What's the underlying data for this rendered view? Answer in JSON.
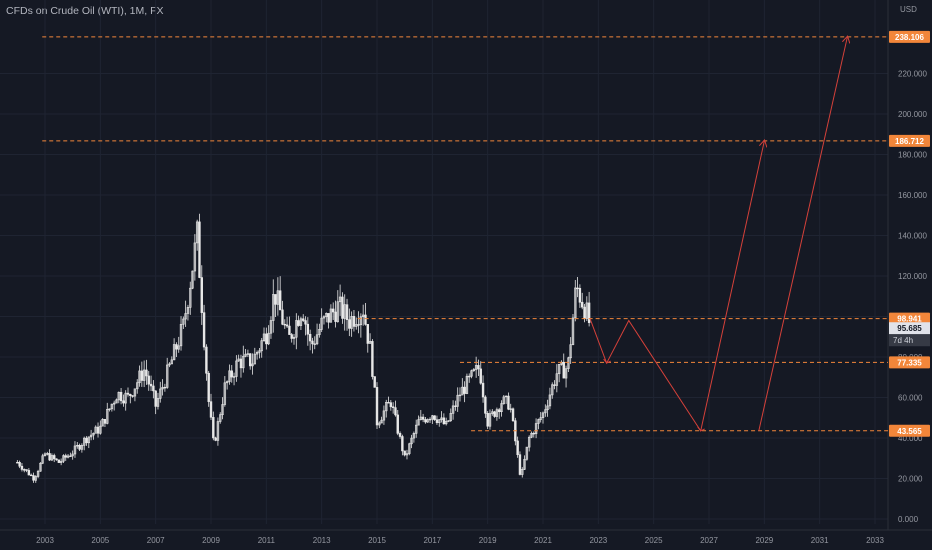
{
  "header": {
    "title": "CFDs on Crude Oil (WTI), 1M, FX",
    "currency": "USD"
  },
  "colors": {
    "background": "#151924",
    "grid": "#1f2432",
    "candle": "#e8e8e8",
    "accent": "#f2863a",
    "arrow": "#d5413a",
    "current_price_bg": "#e1e3ea",
    "countdown_bg": "#363a45"
  },
  "price_tags": {
    "last_price": "95.685",
    "countdown": "7d 4h"
  },
  "chart_data": {
    "type": "candlestick",
    "title": "CFDs on Crude Oil (WTI)",
    "interval": "1M",
    "ylabel": "USD",
    "ylim": [
      0,
      250
    ],
    "xlim": [
      "2002-01",
      "2033-12"
    ],
    "y_ticks": [
      "0.000",
      "20.000",
      "40.000",
      "60.000",
      "80.000",
      "100.000",
      "120.000",
      "140.000",
      "160.000",
      "180.000",
      "200.000",
      "220.000"
    ],
    "x_ticks": [
      "2003",
      "2005",
      "2007",
      "2009",
      "2011",
      "2013",
      "2015",
      "2017",
      "2019",
      "2021",
      "2023",
      "2025",
      "2027",
      "2029",
      "2031",
      "2033"
    ],
    "price_path": [
      [
        2002.0,
        28
      ],
      [
        2002.6,
        20
      ],
      [
        2003.0,
        32
      ],
      [
        2003.5,
        28
      ],
      [
        2004.0,
        33
      ],
      [
        2004.5,
        40
      ],
      [
        2005.0,
        45
      ],
      [
        2005.6,
        62
      ],
      [
        2006.0,
        60
      ],
      [
        2006.6,
        74
      ],
      [
        2007.0,
        56
      ],
      [
        2007.5,
        75
      ],
      [
        2008.0,
        95
      ],
      [
        2008.5,
        140
      ],
      [
        2008.9,
        60
      ],
      [
        2009.1,
        36
      ],
      [
        2009.5,
        65
      ],
      [
        2010.0,
        78
      ],
      [
        2010.5,
        78
      ],
      [
        2011.0,
        92
      ],
      [
        2011.3,
        112
      ],
      [
        2011.8,
        88
      ],
      [
        2012.3,
        105
      ],
      [
        2012.6,
        85
      ],
      [
        2013.0,
        96
      ],
      [
        2013.6,
        105
      ],
      [
        2014.0,
        98
      ],
      [
        2014.5,
        104
      ],
      [
        2014.8,
        80
      ],
      [
        2015.0,
        48
      ],
      [
        2015.5,
        58
      ],
      [
        2016.0,
        30
      ],
      [
        2016.5,
        48
      ],
      [
        2017.0,
        52
      ],
      [
        2017.5,
        46
      ],
      [
        2018.0,
        62
      ],
      [
        2018.7,
        75
      ],
      [
        2019.0,
        48
      ],
      [
        2019.5,
        58
      ],
      [
        2019.8,
        57
      ],
      [
        2020.2,
        20
      ],
      [
        2020.5,
        40
      ],
      [
        2021.0,
        52
      ],
      [
        2021.5,
        72
      ],
      [
        2021.9,
        75
      ],
      [
        2022.2,
        115
      ],
      [
        2022.5,
        105
      ],
      [
        2022.7,
        95.685
      ]
    ],
    "horizontal_levels": [
      {
        "value": 238.106,
        "label": "238.106"
      },
      {
        "value": 186.712,
        "label": "186.712"
      },
      {
        "value": 98.941,
        "label": "98.941"
      },
      {
        "value": 77.335,
        "label": "77.335"
      },
      {
        "value": 43.565,
        "label": "43.565"
      }
    ],
    "projection_path": [
      [
        2022.7,
        98.9
      ],
      [
        2023.3,
        77
      ],
      [
        2024.1,
        98
      ],
      [
        2026.7,
        43.5
      ],
      [
        2029.0,
        186.7
      ]
    ],
    "projection_arrow_2": [
      [
        2028.8,
        43.5
      ],
      [
        2032.0,
        238
      ]
    ]
  }
}
